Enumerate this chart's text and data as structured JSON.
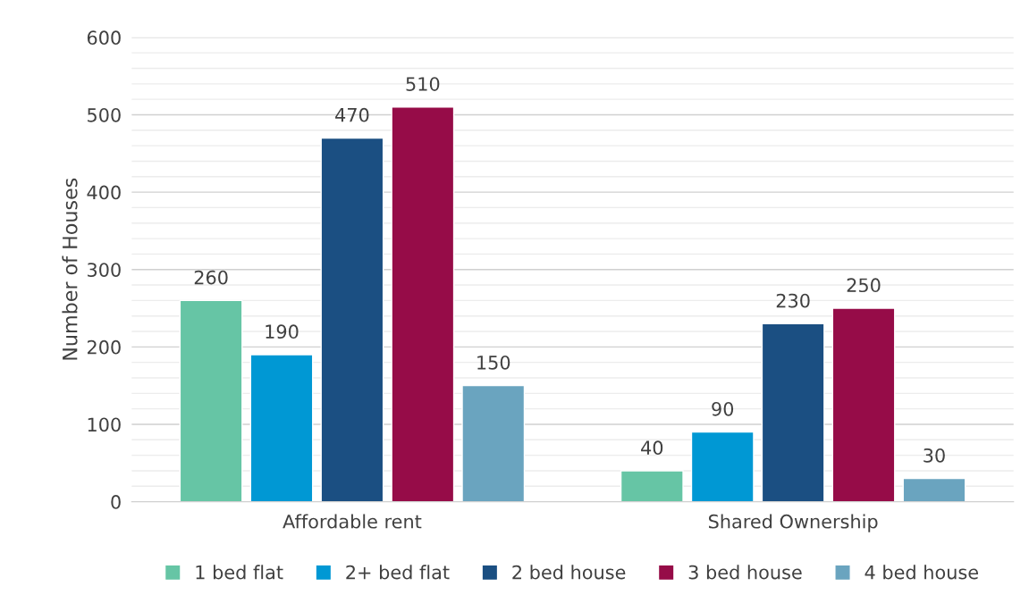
{
  "chart_data": {
    "type": "bar",
    "ylabel": "Number of Houses",
    "categories": [
      "Affordable rent",
      "Shared Ownership"
    ],
    "series": [
      {
        "name": "1 bed flat",
        "color": "#66c5a5",
        "values": [
          260,
          40
        ]
      },
      {
        "name": "2+ bed flat",
        "color": "#0098d4",
        "values": [
          190,
          90
        ]
      },
      {
        "name": "2 bed house",
        "color": "#1b4f82",
        "values": [
          470,
          230
        ]
      },
      {
        "name": "3 bed house",
        "color": "#960c48",
        "values": [
          510,
          250
        ]
      },
      {
        "name": "4 bed house",
        "color": "#6aa4bf",
        "values": [
          150,
          30
        ]
      }
    ],
    "ylim": [
      0,
      600
    ],
    "yticks": [
      0,
      {
        "value": 20,
        "label": null
      },
      {
        "value": 40,
        "label": null
      },
      {
        "value": 60,
        "label": null
      },
      {
        "value": 80,
        "label": null
      },
      100,
      {
        "value": 120,
        "label": null
      },
      {
        "value": 140,
        "label": null
      },
      {
        "value": 160,
        "label": null
      },
      {
        "value": 180,
        "label": null
      },
      200,
      {
        "value": 220,
        "label": null
      },
      {
        "value": 240,
        "label": null
      },
      {
        "value": 260,
        "label": null
      },
      {
        "value": 280,
        "label": null
      },
      300,
      {
        "value": 320,
        "label": null
      },
      {
        "value": 340,
        "label": null
      },
      {
        "value": 360,
        "label": null
      },
      {
        "value": 380,
        "label": null
      },
      400,
      {
        "value": 420,
        "label": null
      },
      {
        "value": 440,
        "label": null
      },
      {
        "value": 460,
        "label": null
      },
      {
        "value": 480,
        "label": null
      },
      500,
      {
        "value": 520,
        "label": null
      },
      {
        "value": 540,
        "label": null
      },
      {
        "value": 560,
        "label": null
      },
      {
        "value": 580,
        "label": null
      },
      600
    ],
    "grid": "y",
    "legend": "bottom",
    "data_labels": true
  }
}
